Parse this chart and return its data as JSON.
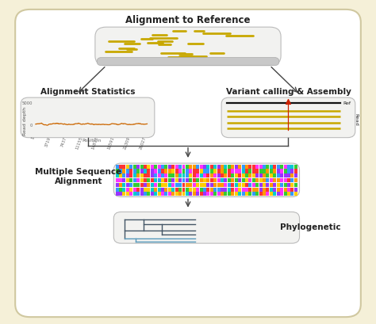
{
  "bg_color": "#faf6e8",
  "outer_bg": "#f5f0d8",
  "title": "Alignment to Reference",
  "align_stats_title": "Alignment Statistics",
  "variant_title": "Variant calling & Assembly",
  "msa_title": "Multiple Sequence\nAlignment",
  "phylo_title": "Phylogenetic",
  "box_facecolor": "#f0f0ee",
  "box_edgecolor": "#b0b0b0",
  "gold_color": "#c8a800",
  "arrow_color": "#444444",
  "read_label": "Read",
  "ref_label": "Ref",
  "orange_color": "#cc6600",
  "black_color": "#111111",
  "red_color": "#cc2200",
  "dark_tree_color": "#445566",
  "blue_tree_color": "#5599bb",
  "msa_colors": [
    "#3399ff",
    "#33cc33",
    "#ff3333",
    "#ff33ff",
    "#ffcc00",
    "#00cccc",
    "#ff9900",
    "#9933ff"
  ],
  "title_fontsize": 8.5,
  "label_fontsize": 7.5,
  "small_fontsize": 4.5,
  "tiny_fontsize": 3.8
}
